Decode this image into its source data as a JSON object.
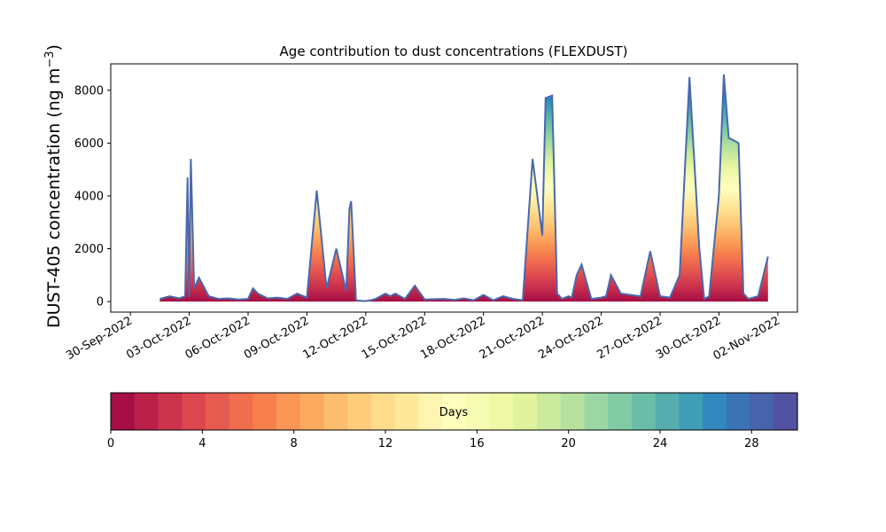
{
  "chart_data": {
    "type": "area",
    "title": "Age contribution to dust concentrations (FLEXDUST)",
    "ylabel": "DUST-405 concentration (ng m",
    "ylabel_superscript": "−3",
    "ylabel_suffix": ")",
    "ylim": [
      -400,
      9000
    ],
    "yticks": [
      0,
      2000,
      4000,
      6000,
      8000
    ],
    "xlim": [
      "2022-09-29",
      "2022-11-03"
    ],
    "xticks": [
      "30-Sep-2022",
      "03-Oct-2022",
      "06-Oct-2022",
      "09-Oct-2022",
      "12-Oct-2022",
      "15-Oct-2022",
      "18-Oct-2022",
      "21-Oct-2022",
      "24-Oct-2022",
      "27-Oct-2022",
      "30-Oct-2022",
      "02-Nov-2022"
    ],
    "grid": false,
    "stacking": "cumulative by age (0-30 days)",
    "series": [
      {
        "x": [
          "2022-10-01T12",
          "2022-10-02T00",
          "2022-10-02T12",
          "2022-10-02T19",
          "2022-10-02T22",
          "2022-10-03T00",
          "2022-10-03T02",
          "2022-10-03T06",
          "2022-10-03T12",
          "2022-10-04T00",
          "2022-10-04T12",
          "2022-10-05T00",
          "2022-10-05T12",
          "2022-10-06T00",
          "2022-10-06T06",
          "2022-10-06T12",
          "2022-10-07T00",
          "2022-10-07T12",
          "2022-10-08T00",
          "2022-10-08T12",
          "2022-10-09T00",
          "2022-10-09T12",
          "2022-10-10T00",
          "2022-10-10T12",
          "2022-10-11T00",
          "2022-10-11T04",
          "2022-10-11T06",
          "2022-10-11T12",
          "2022-10-11T18",
          "2022-10-12T00",
          "2022-10-12T06",
          "2022-10-12T12",
          "2022-10-13T00",
          "2022-10-13T06",
          "2022-10-13T12",
          "2022-10-14T00",
          "2022-10-14T12",
          "2022-10-15T00",
          "2022-10-15T12",
          "2022-10-16T00",
          "2022-10-16T12",
          "2022-10-17T00",
          "2022-10-17T12",
          "2022-10-18T00",
          "2022-10-18T12",
          "2022-10-19T00",
          "2022-10-19T12",
          "2022-10-20T00",
          "2022-10-20T12",
          "2022-10-21T00",
          "2022-10-21T04",
          "2022-10-21T12",
          "2022-10-21T18",
          "2022-10-22T00",
          "2022-10-22T08",
          "2022-10-22T12",
          "2022-10-22T18",
          "2022-10-23T00",
          "2022-10-23T12",
          "2022-10-24T00",
          "2022-10-24T06",
          "2022-10-24T12",
          "2022-10-25T00",
          "2022-10-25T12",
          "2022-10-26T00",
          "2022-10-26T12",
          "2022-10-27T00",
          "2022-10-27T12",
          "2022-10-28T00",
          "2022-10-28T12",
          "2022-10-29T00",
          "2022-10-29T06",
          "2022-10-29T12",
          "2022-10-30T00",
          "2022-10-30T06",
          "2022-10-30T12",
          "2022-10-31T00",
          "2022-10-31T06",
          "2022-10-31T12",
          "2022-11-01T00",
          "2022-11-01T12"
        ],
        "total": [
          100,
          200,
          120,
          200,
          4700,
          180,
          5400,
          500,
          900,
          200,
          100,
          120,
          80,
          100,
          500,
          300,
          120,
          150,
          100,
          300,
          150,
          4200,
          500,
          2000,
          400,
          3500,
          3800,
          50,
          30,
          20,
          50,
          100,
          300,
          200,
          300,
          100,
          600,
          80,
          90,
          100,
          60,
          120,
          50,
          250,
          50,
          200,
          100,
          50,
          5400,
          2500,
          7700,
          7800,
          300,
          100,
          200,
          150,
          1000,
          1400,
          100,
          150,
          200,
          1000,
          300,
          250,
          200,
          1900,
          200,
          150,
          1000,
          8500,
          2000,
          100,
          200,
          4000,
          8600,
          6200,
          6000,
          300,
          100,
          200,
          1700
        ]
      }
    ],
    "colorbar": {
      "label": "Days",
      "min": 0,
      "max": 30,
      "ticks": [
        0,
        4,
        8,
        12,
        16,
        20,
        24,
        28
      ],
      "colors": [
        "#a50f45",
        "#ba2049",
        "#cc344d",
        "#db464f",
        "#e65b4f",
        "#f06d4d",
        "#f6814d",
        "#fa9656",
        "#fcaa5f",
        "#fdbd6e",
        "#fecd7c",
        "#fedc8c",
        "#fee99a",
        "#fff4b0",
        "#fefebd",
        "#f7fcb3",
        "#eef8a6",
        "#e1f39d",
        "#ccea9e",
        "#b6e19f",
        "#9cd6a4",
        "#82cba5",
        "#6bbda8",
        "#56adad",
        "#3f9db5",
        "#3288bd",
        "#3b74b5",
        "#4862ac",
        "#5351a1"
      ]
    }
  }
}
